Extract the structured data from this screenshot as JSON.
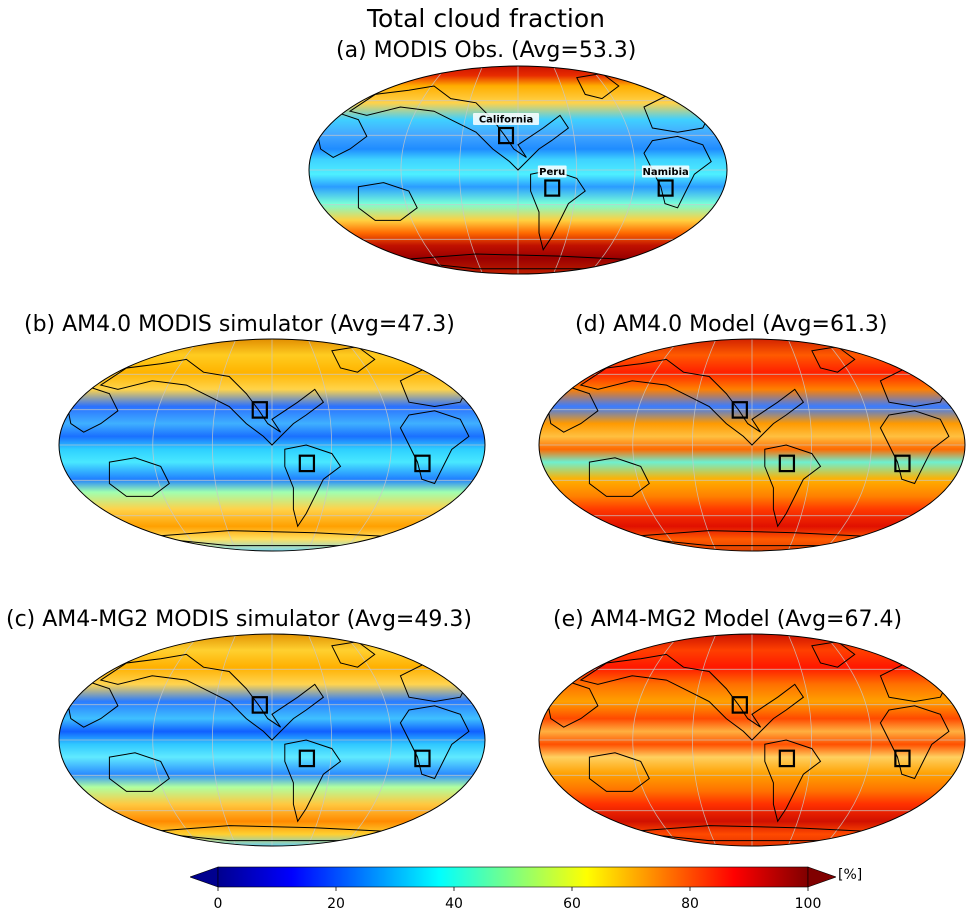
{
  "figure_title": "Total cloud fraction",
  "panels": [
    {
      "id": "a",
      "title": "(a) MODIS Obs. (Avg=53.3)",
      "avg": 53.3,
      "regions_labeled": true
    },
    {
      "id": "b",
      "title": "(b) AM4.0 MODIS simulator (Avg=47.3)",
      "avg": 47.3,
      "regions_labeled": false
    },
    {
      "id": "d",
      "title": "(d) AM4.0 Model (Avg=61.3)",
      "avg": 61.3,
      "regions_labeled": false
    },
    {
      "id": "c",
      "title": "(c) AM4-MG2 MODIS simulator (Avg=49.3)",
      "avg": 49.3,
      "regions_labeled": false
    },
    {
      "id": "e",
      "title": "(e) AM4-MG2 Model (Avg=67.4)",
      "avg": 67.4,
      "regions_labeled": false
    }
  ],
  "regions": [
    {
      "name": "California"
    },
    {
      "name": "Peru"
    },
    {
      "name": "Namibia"
    }
  ],
  "colorbar": {
    "unit": "[%]",
    "range": [
      0,
      100
    ],
    "ticks": [
      "0",
      "20",
      "40",
      "60",
      "80",
      "100"
    ],
    "colormap": "jet",
    "extend": "both"
  }
}
